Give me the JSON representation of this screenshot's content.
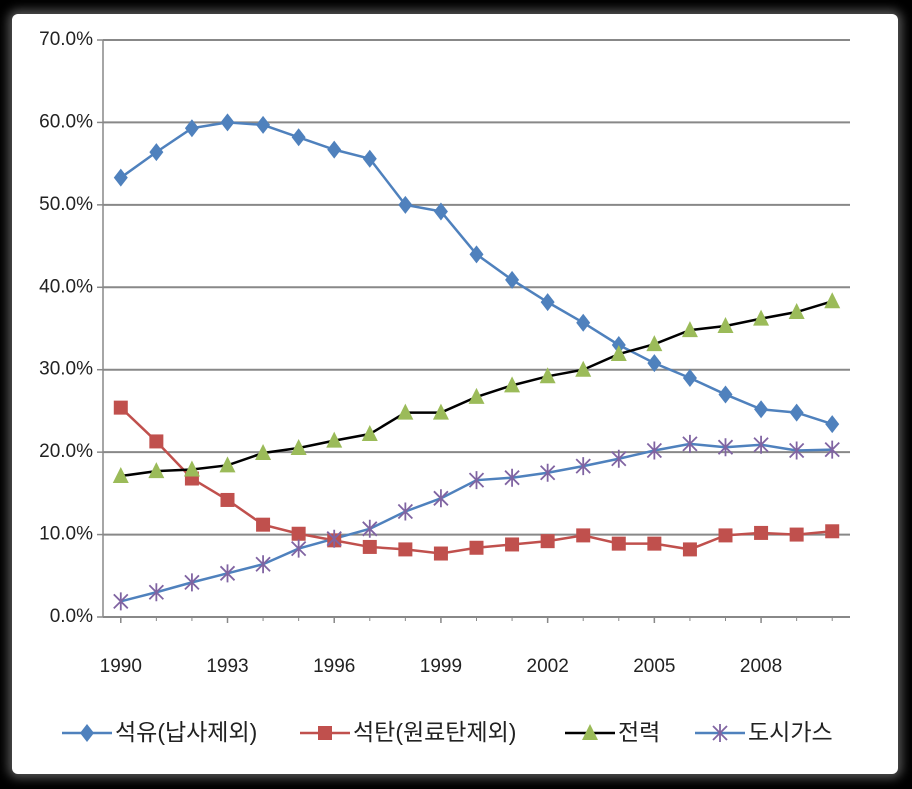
{
  "chart_data": {
    "type": "line",
    "x": [
      1990,
      1991,
      1992,
      1993,
      1994,
      1995,
      1996,
      1997,
      1998,
      1999,
      2000,
      2001,
      2002,
      2003,
      2004,
      2005,
      2006,
      2007,
      2008,
      2009,
      2010
    ],
    "xlim": [
      1989.5,
      2010.5
    ],
    "xticks": [
      1990,
      1993,
      1996,
      1999,
      2002,
      2005,
      2008
    ],
    "ylim": [
      0,
      70
    ],
    "yticks": [
      {
        "value": 0,
        "label": "0.0%"
      },
      {
        "value": 10,
        "label": "10.0%"
      },
      {
        "value": 20,
        "label": "20.0%"
      },
      {
        "value": 30,
        "label": "30.0%"
      },
      {
        "value": 40,
        "label": "40.0%"
      },
      {
        "value": 50,
        "label": "50.0%"
      },
      {
        "value": 60,
        "label": "60.0%"
      },
      {
        "value": 70,
        "label": "70.0%"
      }
    ],
    "grid": true,
    "legend": "bottom",
    "series": [
      {
        "name": "석유(납사제외)",
        "color": "#4f81bd",
        "marker": "diamond",
        "marker_color": "#4f81bd",
        "values": [
          53.3,
          56.4,
          59.3,
          60.0,
          59.7,
          58.2,
          56.7,
          55.6,
          50.0,
          49.2,
          44.0,
          40.9,
          38.2,
          35.7,
          33.0,
          30.8,
          29.0,
          27.0,
          25.2,
          24.8,
          23.4
        ]
      },
      {
        "name": "석탄(원료탄제외)",
        "color": "#c0504d",
        "marker": "square",
        "marker_color": "#c0504d",
        "values": [
          25.4,
          21.3,
          16.8,
          14.2,
          11.2,
          10.1,
          9.3,
          8.5,
          8.2,
          7.7,
          8.4,
          8.8,
          9.2,
          9.9,
          8.9,
          8.9,
          8.2,
          9.9,
          10.2,
          10.0,
          10.4
        ]
      },
      {
        "name": "전력",
        "color": "#000000",
        "marker": "triangle",
        "marker_color": "#9bbb59",
        "values": [
          17.1,
          17.7,
          17.9,
          18.4,
          19.9,
          20.5,
          21.4,
          22.2,
          24.8,
          24.8,
          26.7,
          28.1,
          29.2,
          30.0,
          31.9,
          33.1,
          34.8,
          35.3,
          36.2,
          37.0,
          38.3
        ]
      },
      {
        "name": "도시가스",
        "color": "#4f81bd",
        "marker": "x",
        "marker_color": "#8064a2",
        "values": [
          1.9,
          3.0,
          4.2,
          5.3,
          6.4,
          8.3,
          9.5,
          10.7,
          12.8,
          14.4,
          16.6,
          16.9,
          17.5,
          18.3,
          19.2,
          20.2,
          21.0,
          20.6,
          20.9,
          20.2,
          20.3
        ]
      }
    ]
  }
}
